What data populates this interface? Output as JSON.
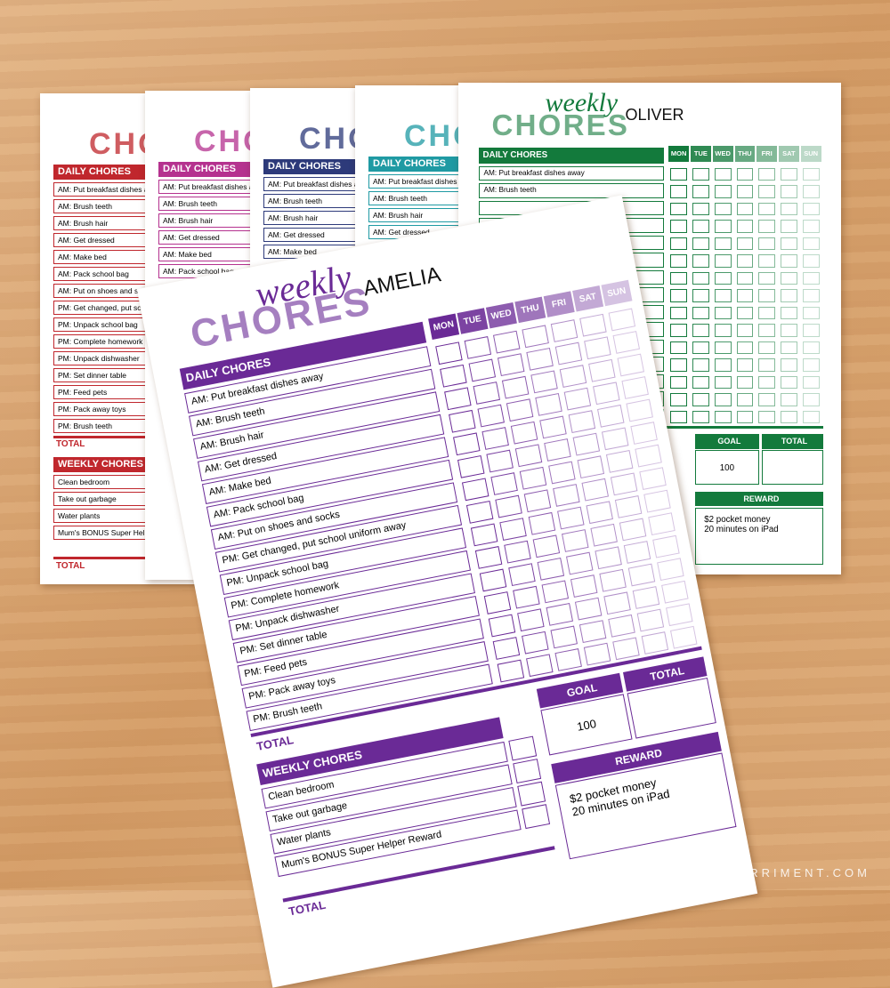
{
  "watermark": "A VISUAL MERRIMENT.COM",
  "back_sheets": [
    {
      "color": "#c0272d",
      "title": "CHORES",
      "section": "DAILY CHORES",
      "chores": [
        "AM: Put breakfast dishes away",
        "AM: Brush teeth",
        "AM: Brush hair",
        "AM: Get dressed",
        "AM: Make bed",
        "AM: Pack school bag",
        "AM: Put on shoes and socks",
        "PM: Get changed, put school uniform away",
        "PM: Unpack school bag",
        "PM: Complete homework",
        "PM: Unpack dishwasher",
        "PM: Set dinner table",
        "PM: Feed pets",
        "PM: Pack away toys",
        "PM: Brush teeth"
      ],
      "total": "TOTAL",
      "weekly_section": "WEEKLY CHORES",
      "weekly": [
        "Clean bedroom",
        "Take out garbage",
        "Water plants",
        "Mum's BONUS Super Helper Reward"
      ],
      "weekly_total": "TOTAL"
    },
    {
      "color": "#b5328f",
      "title": "CHORES",
      "section": "DAILY CHORES",
      "chores": [
        "AM: Put breakfast dishes away",
        "AM: Brush teeth",
        "AM: Brush hair",
        "AM: Get dressed",
        "AM: Make bed",
        "AM: Pack school bag"
      ]
    },
    {
      "color": "#2d3a7a",
      "title": "CHORES",
      "section": "DAILY CHORES",
      "chores": [
        "AM: Put breakfast dishes away",
        "AM: Brush teeth",
        "AM: Brush hair",
        "AM: Get dressed",
        "AM: Make bed"
      ]
    },
    {
      "color": "#1f9aa3",
      "title": "CHORES",
      "section": "DAILY CHORES",
      "chores": [
        "AM: Put breakfast dishes away",
        "AM: Brush teeth",
        "AM: Brush hair",
        "AM: Get dressed"
      ]
    }
  ],
  "oliver": {
    "color": "#137a3c",
    "script": "weekly",
    "title": "CHORES",
    "name": "OLIVER",
    "section": "DAILY CHORES",
    "days": [
      "MON",
      "TUE",
      "WED",
      "THU",
      "FRI",
      "SAT",
      "SUN"
    ],
    "chores": [
      "AM: Put breakfast dishes away",
      "AM: Brush teeth"
    ],
    "goal_label": "GOAL",
    "total_label": "TOTAL",
    "goal": 100,
    "reward_label": "REWARD",
    "reward": [
      "$2 pocket money",
      "20 minutes on iPad"
    ]
  },
  "amelia": {
    "color": "#6a2a96",
    "script": "weekly",
    "title": "CHORES",
    "name": "AMELIA",
    "section": "DAILY CHORES",
    "days": [
      "MON",
      "TUE",
      "WED",
      "THU",
      "FRI",
      "SAT",
      "SUN"
    ],
    "chores": [
      "AM: Put breakfast dishes away",
      "AM: Brush teeth",
      "AM: Brush hair",
      "AM: Get dressed",
      "AM: Make bed",
      "AM: Pack school bag",
      "AM: Put on shoes and socks",
      "PM: Get changed, put school uniform away",
      "PM: Unpack school bag",
      "PM: Complete homework",
      "PM: Unpack dishwasher",
      "PM: Set dinner table",
      "PM: Feed pets",
      "PM: Pack away toys",
      "PM: Brush teeth"
    ],
    "total": "TOTAL",
    "weekly_section": "WEEKLY CHORES",
    "weekly": [
      "Clean bedroom",
      "Take out garbage",
      "Water plants",
      "Mum's BONUS Super Helper Reward"
    ],
    "weekly_total": "TOTAL",
    "goal_label": "GOAL",
    "total_label": "TOTAL",
    "goal": 100,
    "reward_label": "REWARD",
    "reward": [
      "$2 pocket money",
      "20 minutes on iPad"
    ]
  }
}
